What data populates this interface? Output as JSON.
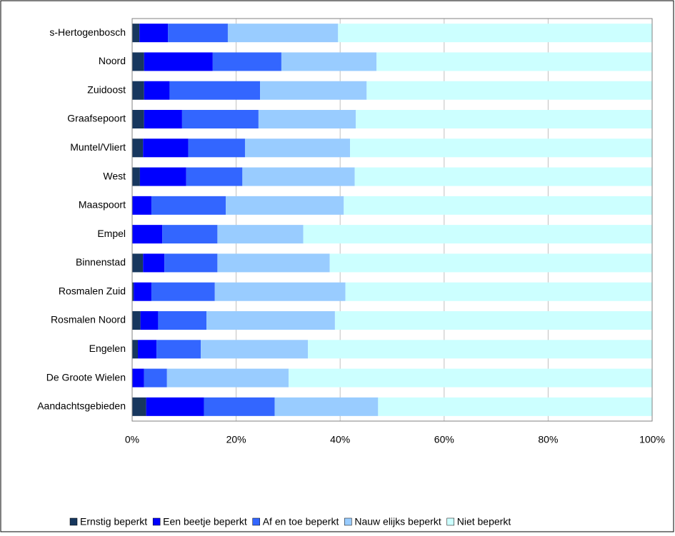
{
  "chart_data": {
    "type": "stacked-bar",
    "categories": [
      "s-Hertogenbosch",
      "Noord",
      "Zuidoost",
      "Graafsepoort",
      "Muntel/Vliert",
      "West",
      "Maaspoort",
      "Empel",
      "Binnenstad",
      "Rosmalen Zuid",
      "Rosmalen Noord",
      "Engelen",
      "De Groote Wielen",
      "Aandachtsgebieden"
    ],
    "series": [
      {
        "name": "Ernstig beperkt",
        "color": "#17375e",
        "values": [
          1.4,
          2.3,
          2.3,
          2.3,
          2.1,
          1.5,
          0,
          0,
          2.1,
          0.3,
          1.6,
          1.1,
          0,
          2.7
        ]
      },
      {
        "name": "Een beetje beperkt",
        "color": "#0000ff",
        "values": [
          5.5,
          13.2,
          4.9,
          7.3,
          8.7,
          8.9,
          3.7,
          5.8,
          4.1,
          3.4,
          3.4,
          3.6,
          2.3,
          11.1
        ]
      },
      {
        "name": "Af en toe beperkt",
        "color": "#3366ff",
        "values": [
          11.5,
          13.2,
          17.4,
          14.7,
          10.9,
          10.8,
          14.3,
          10.6,
          10.2,
          12.2,
          9.3,
          8.5,
          4.4,
          13.6
        ]
      },
      {
        "name": "Nauw elijks beperkt",
        "color": "#99ccff",
        "values": [
          21.2,
          18.3,
          20.5,
          18.7,
          20.2,
          21.6,
          22.7,
          16.5,
          21.6,
          25.1,
          24.7,
          20.6,
          23.4,
          19.9
        ]
      },
      {
        "name": "Niet beperkt",
        "color": "#ccffff",
        "values": [
          60.4,
          53.0,
          54.9,
          57.0,
          58.1,
          57.2,
          59.3,
          67.1,
          62.0,
          59.0,
          61.0,
          66.2,
          69.9,
          52.7
        ]
      }
    ],
    "xlim": [
      0,
      100
    ],
    "xticks": [
      {
        "value": 0,
        "label": "0%"
      },
      {
        "value": 20,
        "label": "20%"
      },
      {
        "value": 40,
        "label": "40%"
      },
      {
        "value": 60,
        "label": "60%"
      },
      {
        "value": 80,
        "label": "80%"
      },
      {
        "value": 100,
        "label": "100%"
      }
    ],
    "grid": true
  }
}
